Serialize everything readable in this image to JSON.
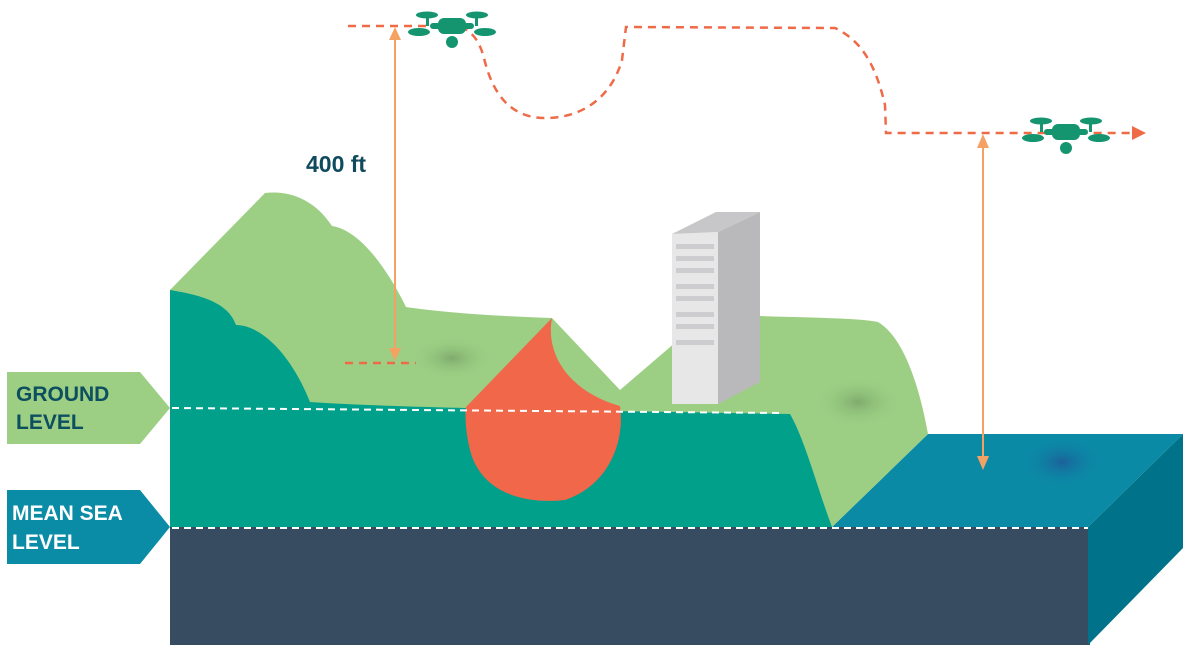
{
  "labels": {
    "altitude": "400 ft",
    "ground_line1": "GROUND",
    "ground_line2": "LEVEL",
    "msl_line1": "MEAN SEA",
    "msl_line2": "LEVEL"
  },
  "colors": {
    "terrain_front": "#00a08a",
    "terrain_top": "#9ccf84",
    "base": "#374b61",
    "water_top": "#0b8aa6",
    "water_side": "#00738a",
    "depression": "#f0674a",
    "flight_path": "#ef6a47",
    "measure_arrow": "#f4a264",
    "drone": "#14956f",
    "building_front": "#e7e7e7",
    "building_side": "#b9b9bc",
    "ground_tag": "#9ccf84",
    "msl_tag": "#0b8ca6",
    "label_dark": "#0d4f5e",
    "altitude_text": "#0f4a5e"
  },
  "icons": [
    "drone-icon",
    "building-icon"
  ]
}
